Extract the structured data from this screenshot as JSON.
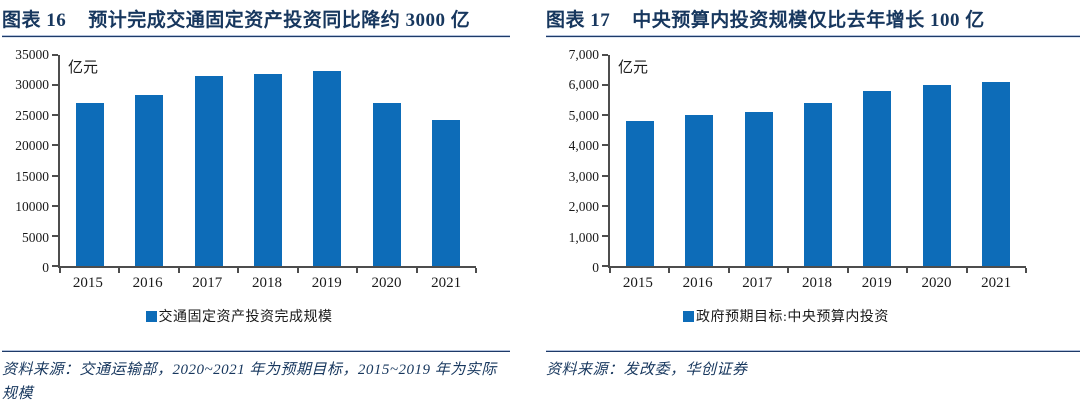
{
  "colors": {
    "bar_blue": "#0d6cb8",
    "navy": "#17375e",
    "axis_gray": "#4d4d4d"
  },
  "chart_data": [
    {
      "type": "bar",
      "figure_label": "图表 16",
      "title": "预计完成交通固定资产投资同比降约 3000 亿",
      "unit_label": "亿元",
      "categories": [
        "2015",
        "2016",
        "2017",
        "2018",
        "2019",
        "2020",
        "2021"
      ],
      "values": [
        27100,
        28400,
        31500,
        31800,
        32300,
        27100,
        24200
      ],
      "ylim": [
        0,
        35000
      ],
      "ytick_labels": [
        "0",
        "5000",
        "10000",
        "15000",
        "20000",
        "25000",
        "30000",
        "35000"
      ],
      "grid": false,
      "legend_position": "bottom",
      "legend": [
        "交通固定资产投资完成规模"
      ],
      "bar_color": "#0d6cb8",
      "source": "资料来源：交通运输部，2020~2021 年为预期目标，2015~2019 年为实际规模"
    },
    {
      "type": "bar",
      "figure_label": "图表 17",
      "title": "中央预算内投资规模仅比去年增长 100 亿",
      "unit_label": "亿元",
      "categories": [
        "2015",
        "2016",
        "2017",
        "2018",
        "2019",
        "2020",
        "2021"
      ],
      "values": [
        4800,
        5000,
        5100,
        5400,
        5800,
        6000,
        6100
      ],
      "ylim": [
        0,
        7000
      ],
      "ytick_labels": [
        "0",
        "1,000",
        "2,000",
        "3,000",
        "4,000",
        "5,000",
        "6,000",
        "7,000"
      ],
      "grid": false,
      "legend_position": "bottom",
      "legend": [
        "政府预期目标:中央预算内投资"
      ],
      "bar_color": "#0d6cb8",
      "source": "资料来源：发改委，华创证券"
    }
  ]
}
